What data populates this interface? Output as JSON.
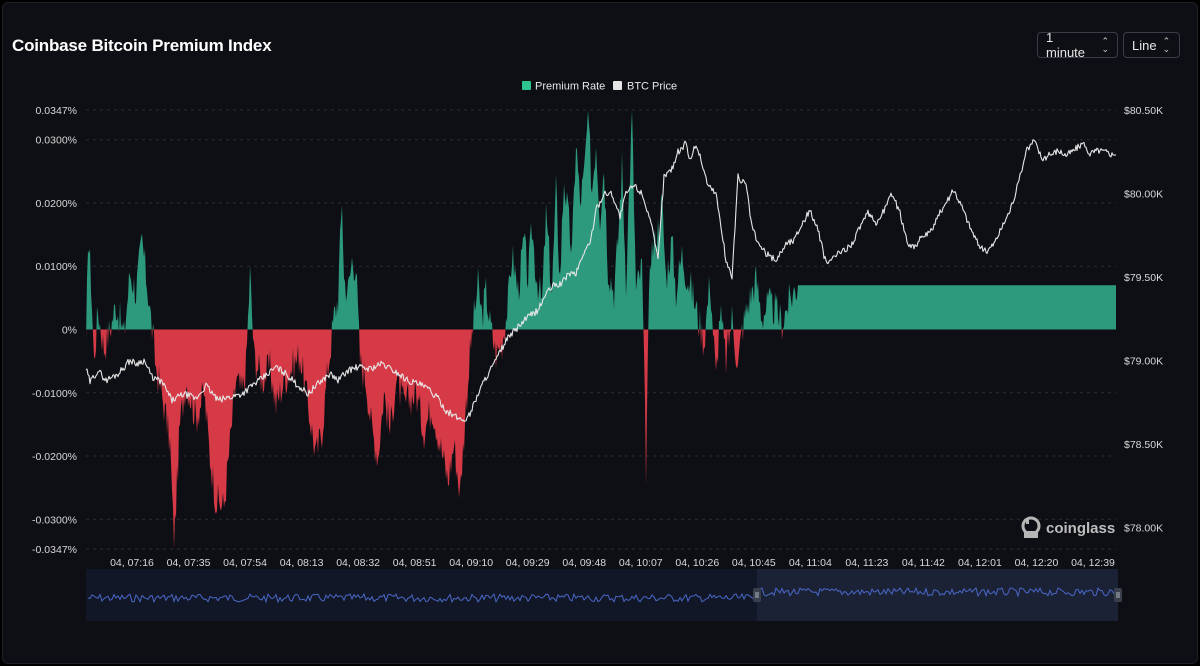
{
  "header": {
    "title": "Coinbase Bitcoin Premium Index",
    "interval": "1 minute",
    "chart_type": "Line"
  },
  "brand": {
    "name": "coinglass",
    "icon": "coinglass-logo-icon"
  },
  "colors": {
    "positive": "#2d9a7d",
    "negative": "#d63a47",
    "price_line": "#e6e6e6",
    "navigator_line": "#4a67c7",
    "navigator_bg": "#121828",
    "navigator_selected": "#1e2640",
    "grid": "#2a2c35"
  },
  "chart_data": {
    "type": "area",
    "legend": [
      {
        "name": "Premium Rate",
        "color": "#2d9a7d"
      },
      {
        "name": "BTC Price",
        "color": "#e6e6e6"
      }
    ],
    "y_left": {
      "ticks": [
        "0.0347%",
        "0.0300%",
        "0.0200%",
        "0.0100%",
        "0%",
        "-0.0100%",
        "-0.0200%",
        "-0.0300%",
        "-0.0347%"
      ],
      "tick_values": [
        0.0347,
        0.03,
        0.02,
        0.01,
        0,
        -0.01,
        -0.02,
        -0.03,
        -0.0347
      ],
      "range": [
        -0.0347,
        0.0347
      ]
    },
    "y_right": {
      "ticks": [
        "$80.50K",
        "$80.00K",
        "$79.50K",
        "$79.00K",
        "$78.50K",
        "$78.00K"
      ],
      "tick_values": [
        80500,
        80000,
        79500,
        79000,
        78500,
        78000
      ],
      "range": [
        77870,
        80500
      ]
    },
    "x_ticks": [
      "04, 07:16",
      "04, 07:35",
      "04, 07:54",
      "04, 08:13",
      "04, 08:32",
      "04, 08:51",
      "04, 09:10",
      "04, 09:29",
      "04, 09:48",
      "04, 10:07",
      "04, 10:26",
      "04, 10:45",
      "04, 11:04",
      "04, 11:23",
      "04, 11:42",
      "04, 12:01",
      "04, 12:20",
      "04, 12:39"
    ],
    "premium_anchors": [
      [
        0,
        -0.004
      ],
      [
        2,
        0.015
      ],
      [
        5,
        0.008
      ],
      [
        8,
        -0.005
      ],
      [
        12,
        0.003
      ],
      [
        18,
        -0.003
      ],
      [
        24,
        0.0
      ],
      [
        30,
        0.004
      ],
      [
        38,
        -0.001
      ],
      [
        44,
        0.009
      ],
      [
        50,
        0.006
      ],
      [
        56,
        0.014
      ],
      [
        62,
        0.006
      ],
      [
        70,
        -0.006
      ],
      [
        78,
        -0.012
      ],
      [
        84,
        -0.018
      ],
      [
        88,
        -0.034
      ],
      [
        94,
        -0.015
      ],
      [
        100,
        -0.008
      ],
      [
        110,
        -0.014
      ],
      [
        118,
        -0.01
      ],
      [
        124,
        -0.02
      ],
      [
        130,
        -0.027
      ],
      [
        138,
        -0.028
      ],
      [
        144,
        -0.018
      ],
      [
        150,
        -0.008
      ],
      [
        156,
        -0.01
      ],
      [
        160,
        -0.006
      ],
      [
        164,
        0.009
      ],
      [
        168,
        -0.004
      ],
      [
        176,
        -0.008
      ],
      [
        184,
        -0.006
      ],
      [
        190,
        -0.012
      ],
      [
        198,
        -0.008
      ],
      [
        206,
        -0.006
      ],
      [
        214,
        -0.004
      ],
      [
        222,
        -0.012
      ],
      [
        230,
        -0.02
      ],
      [
        236,
        -0.016
      ],
      [
        242,
        -0.006
      ],
      [
        248,
        0.002
      ],
      [
        252,
        0.005
      ],
      [
        256,
        0.021
      ],
      [
        258,
        0.008
      ],
      [
        262,
        0.006
      ],
      [
        266,
        0.011
      ],
      [
        270,
        0.01
      ],
      [
        274,
        -0.005
      ],
      [
        280,
        -0.008
      ],
      [
        286,
        -0.016
      ],
      [
        292,
        -0.02
      ],
      [
        298,
        -0.01
      ],
      [
        304,
        -0.016
      ],
      [
        310,
        -0.008
      ],
      [
        318,
        -0.012
      ],
      [
        324,
        -0.011
      ],
      [
        330,
        -0.01
      ],
      [
        338,
        -0.016
      ],
      [
        346,
        -0.012
      ],
      [
        354,
        -0.018
      ],
      [
        362,
        -0.024
      ],
      [
        368,
        -0.018
      ],
      [
        374,
        -0.026
      ],
      [
        380,
        -0.012
      ],
      [
        384,
        -0.004
      ],
      [
        388,
        0.002
      ],
      [
        392,
        0.007
      ],
      [
        396,
        0.002
      ],
      [
        400,
        0.006
      ],
      [
        404,
        0.001
      ],
      [
        410,
        -0.004
      ],
      [
        416,
        -0.002
      ],
      [
        422,
        0.004
      ],
      [
        426,
        0.012
      ],
      [
        432,
        0.006
      ],
      [
        438,
        0.014
      ],
      [
        442,
        0.008
      ],
      [
        446,
        0.016
      ],
      [
        450,
        0.009
      ],
      [
        456,
        0.004
      ],
      [
        460,
        0.018
      ],
      [
        466,
        0.006
      ],
      [
        470,
        0.022
      ],
      [
        474,
        0.008
      ],
      [
        478,
        0.024
      ],
      [
        482,
        0.018
      ],
      [
        486,
        0.012
      ],
      [
        490,
        0.03
      ],
      [
        494,
        0.02
      ],
      [
        498,
        0.024
      ],
      [
        502,
        0.034
      ],
      [
        506,
        0.022
      ],
      [
        510,
        0.03
      ],
      [
        514,
        0.018
      ],
      [
        518,
        0.026
      ],
      [
        522,
        0.01
      ],
      [
        528,
        0.006
      ],
      [
        532,
        0.014
      ],
      [
        536,
        0.026
      ],
      [
        540,
        0.008
      ],
      [
        546,
        0.034
      ],
      [
        550,
        0.006
      ],
      [
        556,
        0.01
      ],
      [
        560,
        -0.022
      ],
      [
        564,
        0.012
      ],
      [
        570,
        0.014
      ],
      [
        576,
        0.02
      ],
      [
        580,
        0.008
      ],
      [
        586,
        0.014
      ],
      [
        590,
        0.006
      ],
      [
        596,
        0.012
      ],
      [
        600,
        0.009
      ],
      [
        606,
        0.006
      ],
      [
        612,
        0.002
      ],
      [
        618,
        -0.002
      ],
      [
        624,
        0.008
      ],
      [
        630,
        -0.008
      ],
      [
        634,
        0.003
      ],
      [
        640,
        -0.005
      ],
      [
        646,
        0.002
      ],
      [
        652,
        -0.006
      ],
      [
        656,
        0.0
      ],
      [
        662,
        0.004
      ],
      [
        670,
        0.008
      ],
      [
        676,
        0.002
      ],
      [
        682,
        0.004
      ],
      [
        690,
        0.003
      ],
      [
        696,
        0.001
      ],
      [
        702,
        0.004
      ],
      [
        708,
        0.006
      ],
      [
        712,
        0.007
      ]
    ],
    "price_anchors": [
      [
        0,
        78950
      ],
      [
        4,
        78870
      ],
      [
        12,
        78940
      ],
      [
        20,
        78880
      ],
      [
        32,
        78920
      ],
      [
        44,
        79000
      ],
      [
        50,
        78980
      ],
      [
        58,
        79000
      ],
      [
        66,
        78900
      ],
      [
        76,
        78870
      ],
      [
        86,
        78760
      ],
      [
        98,
        78800
      ],
      [
        110,
        78770
      ],
      [
        120,
        78850
      ],
      [
        132,
        78760
      ],
      [
        144,
        78780
      ],
      [
        156,
        78800
      ],
      [
        166,
        78850
      ],
      [
        178,
        78900
      ],
      [
        190,
        78960
      ],
      [
        200,
        78920
      ],
      [
        210,
        78860
      ],
      [
        222,
        78800
      ],
      [
        232,
        78860
      ],
      [
        244,
        78920
      ],
      [
        252,
        78880
      ],
      [
        262,
        78940
      ],
      [
        272,
        78960
      ],
      [
        284,
        78950
      ],
      [
        296,
        78980
      ],
      [
        310,
        78930
      ],
      [
        322,
        78880
      ],
      [
        332,
        78860
      ],
      [
        342,
        78830
      ],
      [
        352,
        78770
      ],
      [
        360,
        78700
      ],
      [
        370,
        78660
      ],
      [
        378,
        78640
      ],
      [
        384,
        78680
      ],
      [
        392,
        78800
      ],
      [
        400,
        78900
      ],
      [
        410,
        79000
      ],
      [
        420,
        79120
      ],
      [
        432,
        79200
      ],
      [
        442,
        79260
      ],
      [
        452,
        79300
      ],
      [
        460,
        79400
      ],
      [
        468,
        79450
      ],
      [
        476,
        79460
      ],
      [
        482,
        79520
      ],
      [
        490,
        79520
      ],
      [
        498,
        79650
      ],
      [
        504,
        79700
      ],
      [
        510,
        79900
      ],
      [
        518,
        80000
      ],
      [
        526,
        80000
      ],
      [
        534,
        79860
      ],
      [
        540,
        80000
      ],
      [
        548,
        80050
      ],
      [
        556,
        80000
      ],
      [
        564,
        79850
      ],
      [
        572,
        79600
      ],
      [
        578,
        80100
      ],
      [
        586,
        80150
      ],
      [
        592,
        80250
      ],
      [
        600,
        80300
      ],
      [
        604,
        80200
      ],
      [
        610,
        80300
      ],
      [
        616,
        80180
      ],
      [
        622,
        80050
      ],
      [
        630,
        80000
      ],
      [
        640,
        79600
      ],
      [
        646,
        79500
      ],
      [
        652,
        80100
      ],
      [
        660,
        80050
      ],
      [
        666,
        79800
      ],
      [
        672,
        79700
      ],
      [
        680,
        79640
      ],
      [
        690,
        79600
      ],
      [
        700,
        79700
      ],
      [
        708,
        79720
      ],
      [
        716,
        79820
      ],
      [
        724,
        79900
      ],
      [
        732,
        79780
      ],
      [
        740,
        79580
      ],
      [
        748,
        79620
      ],
      [
        758,
        79660
      ],
      [
        766,
        79700
      ],
      [
        774,
        79800
      ],
      [
        782,
        79880
      ],
      [
        790,
        79820
      ],
      [
        798,
        79900
      ],
      [
        806,
        80000
      ],
      [
        814,
        79880
      ],
      [
        822,
        79700
      ],
      [
        828,
        79680
      ],
      [
        836,
        79740
      ],
      [
        844,
        79760
      ],
      [
        852,
        79860
      ],
      [
        860,
        79950
      ],
      [
        868,
        80020
      ],
      [
        876,
        79920
      ],
      [
        884,
        79800
      ],
      [
        892,
        79700
      ],
      [
        900,
        79650
      ],
      [
        908,
        79700
      ],
      [
        916,
        79800
      ],
      [
        924,
        79900
      ],
      [
        932,
        80050
      ],
      [
        940,
        80250
      ],
      [
        948,
        80320
      ],
      [
        956,
        80210
      ],
      [
        964,
        80230
      ],
      [
        972,
        80260
      ],
      [
        980,
        80230
      ],
      [
        988,
        80260
      ],
      [
        996,
        80300
      ],
      [
        1004,
        80240
      ],
      [
        1012,
        80260
      ],
      [
        1020,
        80250
      ],
      [
        1028,
        80230
      ]
    ]
  }
}
